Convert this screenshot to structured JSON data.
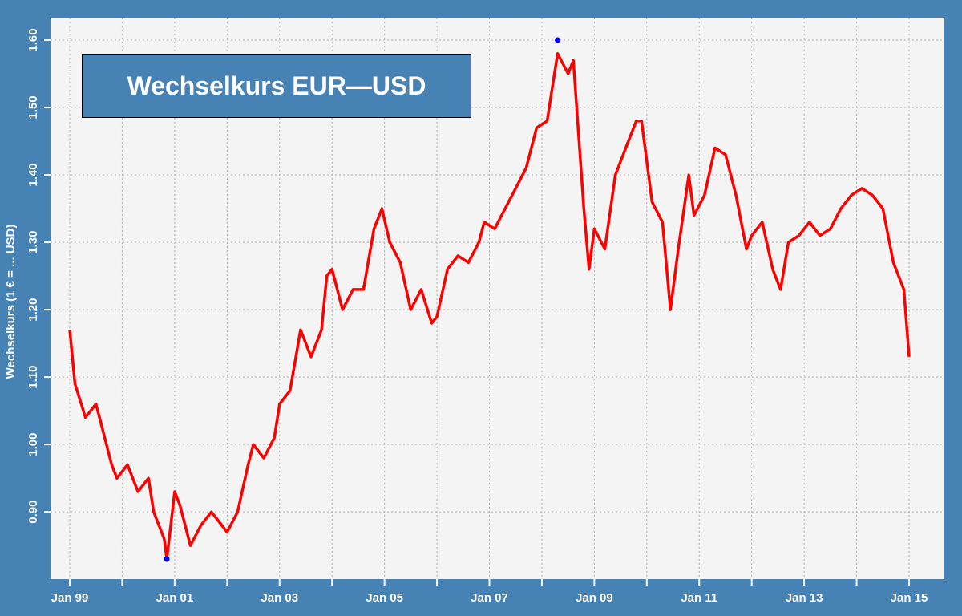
{
  "chart_data": {
    "type": "line",
    "title": "Wechselkurs EUR—USD",
    "xlabel": "",
    "ylabel": "Wechselkurs (1 € = ... USD)",
    "x_tick_labels": [
      "Jan 99",
      "Jan 01",
      "Jan 03",
      "Jan 05",
      "Jan 07",
      "Jan 09",
      "Jan 11",
      "Jan 13",
      "Jan 15"
    ],
    "y_tick_labels": [
      "0.90",
      "1.00",
      "1.10",
      "1.20",
      "1.30",
      "1.40",
      "1.50",
      "1.60"
    ],
    "xlim": [
      1999.0,
      2015.0
    ],
    "ylim": [
      0.83,
      1.6
    ],
    "grid": true,
    "series": [
      {
        "color": "#ff0000",
        "x": [
          1999.0,
          1999.1,
          1999.3,
          1999.5,
          1999.6,
          1999.8,
          1999.9,
          2000.1,
          2000.3,
          2000.5,
          2000.6,
          2000.8,
          2000.85,
          2001.0,
          2001.1,
          2001.3,
          2001.5,
          2001.7,
          2001.9,
          2002.0,
          2002.2,
          2002.4,
          2002.5,
          2002.7,
          2002.9,
          2003.0,
          2003.2,
          2003.4,
          2003.6,
          2003.8,
          2003.9,
          2004.0,
          2004.2,
          2004.4,
          2004.6,
          2004.8,
          2004.95,
          2005.1,
          2005.3,
          2005.5,
          2005.7,
          2005.9,
          2006.0,
          2006.2,
          2006.4,
          2006.6,
          2006.8,
          2006.9,
          2007.1,
          2007.3,
          2007.5,
          2007.7,
          2007.9,
          2008.1,
          2008.3,
          2008.5,
          2008.6,
          2008.8,
          2008.9,
          2009.0,
          2009.2,
          2009.4,
          2009.6,
          2009.8,
          2009.9,
          2010.1,
          2010.3,
          2010.45,
          2010.6,
          2010.8,
          2010.9,
          2011.1,
          2011.3,
          2011.5,
          2011.7,
          2011.9,
          2012.0,
          2012.2,
          2012.4,
          2012.55,
          2012.7,
          2012.9,
          2013.1,
          2013.3,
          2013.5,
          2013.7,
          2013.9,
          2014.1,
          2014.3,
          2014.5,
          2014.7,
          2014.9,
          2015.0
        ],
        "y": [
          1.17,
          1.09,
          1.04,
          1.06,
          1.03,
          0.97,
          0.95,
          0.97,
          0.93,
          0.95,
          0.9,
          0.86,
          0.83,
          0.93,
          0.91,
          0.85,
          0.88,
          0.9,
          0.88,
          0.87,
          0.9,
          0.97,
          1.0,
          0.98,
          1.01,
          1.06,
          1.08,
          1.17,
          1.13,
          1.17,
          1.25,
          1.26,
          1.2,
          1.23,
          1.23,
          1.32,
          1.35,
          1.3,
          1.27,
          1.2,
          1.23,
          1.18,
          1.19,
          1.26,
          1.28,
          1.27,
          1.3,
          1.33,
          1.32,
          1.35,
          1.38,
          1.41,
          1.47,
          1.48,
          1.58,
          1.55,
          1.57,
          1.35,
          1.26,
          1.32,
          1.29,
          1.4,
          1.44,
          1.48,
          1.48,
          1.36,
          1.33,
          1.2,
          1.29,
          1.4,
          1.34,
          1.37,
          1.44,
          1.43,
          1.37,
          1.29,
          1.31,
          1.33,
          1.26,
          1.23,
          1.3,
          1.31,
          1.33,
          1.31,
          1.32,
          1.35,
          1.37,
          1.38,
          1.37,
          1.35,
          1.27,
          1.23,
          1.13
        ]
      }
    ],
    "markers": [
      {
        "x": 2000.85,
        "y": 0.83,
        "color": "#0000ff"
      },
      {
        "x": 2008.3,
        "y": 1.6,
        "color": "#0000ff"
      }
    ]
  }
}
